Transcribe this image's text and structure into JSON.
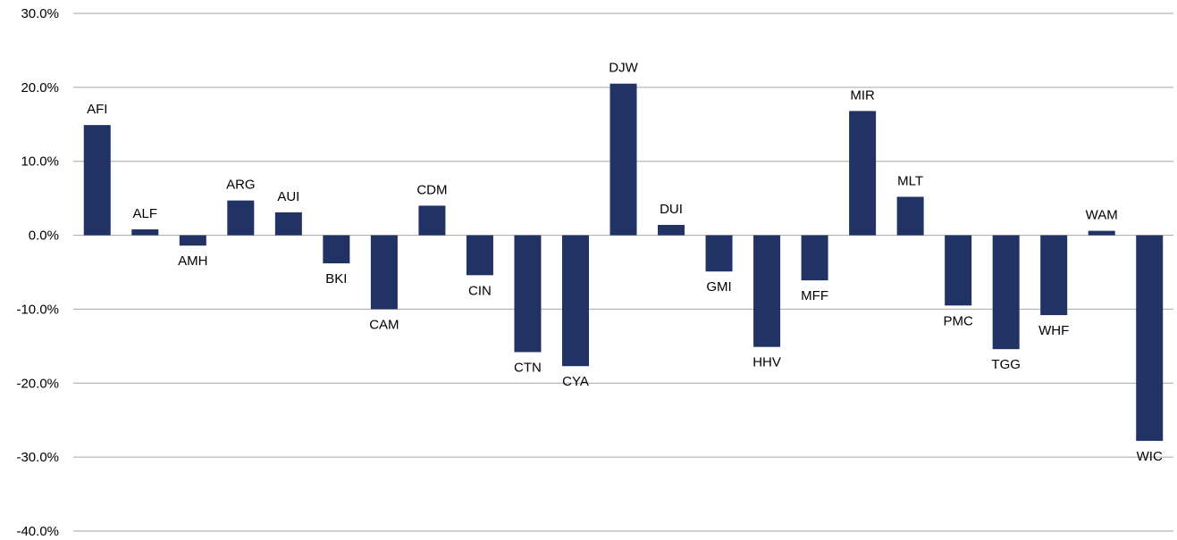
{
  "chart_data": {
    "type": "bar",
    "title": "",
    "xlabel": "",
    "ylabel": "",
    "ylim": [
      -40,
      30
    ],
    "yticks": [
      30,
      20,
      10,
      0,
      -10,
      -20,
      -30,
      -40
    ],
    "ytick_labels": [
      "30.0%",
      "20.0%",
      "10.0%",
      "0.0%",
      "-10.0%",
      "-20.0%",
      "-30.0%",
      "-40.0%"
    ],
    "grid": true,
    "bar_color": "#203364",
    "categories": [
      "AFI",
      "ALF",
      "AMH",
      "ARG",
      "AUI",
      "BKI",
      "CAM",
      "CDM",
      "CIN",
      "CTN",
      "CYA",
      "DJW",
      "DUI",
      "GMI",
      "HHV",
      "MFF",
      "MIR",
      "MLT",
      "PMC",
      "TGG",
      "WHF",
      "WAM",
      "WIC"
    ],
    "values": [
      14.9,
      0.8,
      -1.4,
      4.7,
      3.1,
      -3.8,
      -10.0,
      4.0,
      -5.4,
      -15.8,
      -17.7,
      20.5,
      1.4,
      -4.9,
      -15.1,
      -6.1,
      16.8,
      5.2,
      -9.5,
      -15.4,
      -10.8,
      0.6,
      -27.8
    ]
  }
}
